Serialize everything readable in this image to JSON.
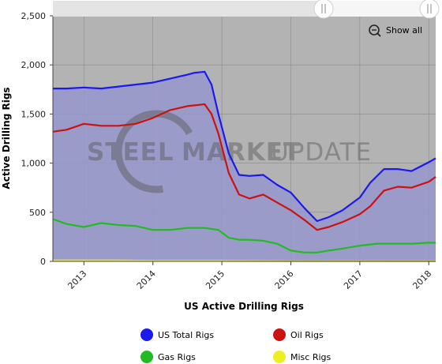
{
  "chart_data": {
    "type": "area",
    "title": "",
    "xlabel": "US Active Drilling Rigs",
    "ylabel": "Active Drilling Rigs",
    "ylim": [
      0,
      2500
    ],
    "xlim": [
      2012.55,
      2018.1
    ],
    "yticks": [
      "0",
      "500",
      "1,000",
      "1,500",
      "2,000",
      "2,500"
    ],
    "xticks": [
      "2013",
      "2014",
      "2015",
      "2016",
      "2017",
      "2018"
    ],
    "grid": true,
    "legend_position": "bottom",
    "series": [
      {
        "name": "US Total Rigs",
        "color": "#1a1aee",
        "x": [
          2012.55,
          2012.75,
          2013.0,
          2013.25,
          2013.5,
          2013.75,
          2014.0,
          2014.25,
          2014.5,
          2014.6,
          2014.75,
          2014.85,
          2014.95,
          2015.1,
          2015.25,
          2015.4,
          2015.6,
          2015.8,
          2016.0,
          2016.2,
          2016.38,
          2016.55,
          2016.75,
          2017.0,
          2017.15,
          2017.35,
          2017.55,
          2017.75,
          2018.0,
          2018.1
        ],
        "values": [
          1760,
          1760,
          1770,
          1760,
          1780,
          1800,
          1820,
          1860,
          1900,
          1920,
          1930,
          1800,
          1500,
          1100,
          880,
          870,
          880,
          780,
          700,
          540,
          410,
          450,
          520,
          650,
          800,
          940,
          940,
          920,
          1010,
          1050
        ]
      },
      {
        "name": "Oil Rigs",
        "color": "#cc1111",
        "x": [
          2012.55,
          2012.75,
          2013.0,
          2013.25,
          2013.5,
          2013.75,
          2014.0,
          2014.25,
          2014.5,
          2014.75,
          2014.85,
          2014.95,
          2015.1,
          2015.25,
          2015.4,
          2015.6,
          2015.8,
          2016.0,
          2016.2,
          2016.38,
          2016.55,
          2016.75,
          2017.0,
          2017.15,
          2017.35,
          2017.55,
          2017.75,
          2018.0,
          2018.1
        ],
        "values": [
          1320,
          1340,
          1400,
          1380,
          1380,
          1400,
          1460,
          1540,
          1580,
          1600,
          1500,
          1300,
          900,
          680,
          640,
          680,
          600,
          520,
          420,
          320,
          350,
          400,
          480,
          560,
          720,
          760,
          750,
          810,
          860
        ]
      },
      {
        "name": "Gas Rigs",
        "color": "#22bb22",
        "x": [
          2012.55,
          2012.75,
          2013.0,
          2013.25,
          2013.5,
          2013.75,
          2014.0,
          2014.25,
          2014.5,
          2014.75,
          2014.95,
          2015.1,
          2015.25,
          2015.4,
          2015.6,
          2015.8,
          2016.0,
          2016.2,
          2016.38,
          2016.55,
          2016.75,
          2017.0,
          2017.25,
          2017.5,
          2017.75,
          2018.0,
          2018.1
        ],
        "values": [
          430,
          380,
          350,
          390,
          370,
          360,
          320,
          320,
          340,
          340,
          320,
          240,
          220,
          220,
          210,
          180,
          110,
          90,
          90,
          110,
          130,
          160,
          180,
          180,
          180,
          190,
          190
        ]
      },
      {
        "name": "Misc Rigs",
        "color": "#eeee22",
        "x": [
          2012.55,
          2013.0,
          2013.5,
          2014.0,
          2014.5,
          2015.0,
          2015.5,
          2016.0,
          2016.5,
          2017.0,
          2017.5,
          2018.1
        ],
        "values": [
          10,
          10,
          10,
          5,
          5,
          5,
          3,
          2,
          2,
          2,
          1,
          1
        ]
      }
    ]
  },
  "ui": {
    "show_all_label": "Show all",
    "watermark_word1": "STEEL",
    "watermark_word2": "MARKET",
    "watermark_word3": "UPDATE",
    "colors": {
      "plot_bg": "#b3b3b3",
      "fill": "#9898cc",
      "grid": "#8a8a8a"
    }
  }
}
